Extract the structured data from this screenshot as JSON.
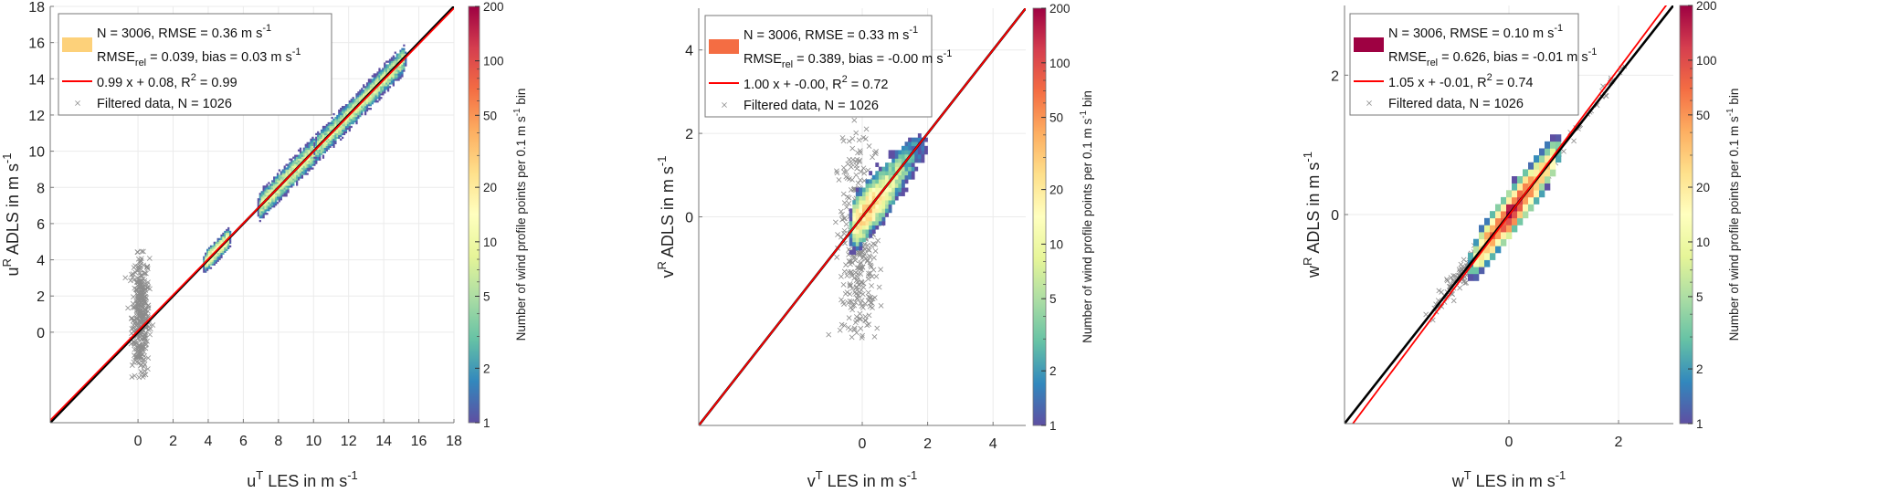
{
  "colormap": {
    "name": "spectral (reversed), log scale",
    "stops": [
      "#5e4fa2",
      "#3288bd",
      "#66c2a5",
      "#abdda4",
      "#e6f598",
      "#ffffbf",
      "#fee08b",
      "#fdae61",
      "#f46d43",
      "#d53e4f",
      "#9e0142"
    ],
    "limits": [
      1,
      200
    ],
    "ticks": [
      1,
      2,
      5,
      10,
      20,
      50,
      100,
      200
    ],
    "label": "Number of wind profile points per 0.1 m s",
    "label_sup": "-1",
    "label_end": " bin"
  },
  "chart_data": [
    {
      "type": "heatmap",
      "component": "u",
      "xlabel": {
        "base": "u",
        "sup": "T",
        "rest": " LES in m s",
        "unit_sup": "-1"
      },
      "ylabel": {
        "base": "u",
        "sup": "R",
        "rest": " ADLS in m s",
        "unit_sup": "-1"
      },
      "xlim": [
        -5,
        18
      ],
      "ylim": [
        -5,
        18
      ],
      "xticks": [
        0,
        2,
        4,
        6,
        8,
        10,
        12,
        14,
        16,
        18
      ],
      "yticks": [
        0,
        2,
        4,
        6,
        8,
        10,
        12,
        14,
        16,
        18
      ],
      "grid": true,
      "bin_size": 0.1,
      "fit": {
        "slope": 0.99,
        "intercept": 0.08,
        "color": "#ff0000"
      },
      "identity_line_color": "#000000",
      "legend": {
        "placement": "top-left",
        "patch_color": "#fdd17a",
        "line1": "N = 3006, RMSE = 0.36 m s",
        "line1_sup": "-1",
        "line2a": "RMSE",
        "line2_sub": "rel",
        "line2b": " = 0.039, bias = 0.03 m s",
        "line2_sup": "-1",
        "line3a": "0.99 x + 0.08, R",
        "line3_sup": "2",
        "line3b": " = 0.99",
        "line4": "Filtered data, N = 1026"
      },
      "density_clusters": [
        {
          "x_range": [
            3.9,
            5.0
          ],
          "spread": 0.25,
          "peak_count": 14
        },
        {
          "x_range": [
            7.0,
            10.2
          ],
          "spread": 0.35,
          "peak_count": 9
        },
        {
          "x_range": [
            10.2,
            15.0
          ],
          "spread": 0.35,
          "peak_count": 8
        }
      ],
      "filtered_points": {
        "x_center": 0.15,
        "x_spread": 0.25,
        "y_range": [
          -2.7,
          4.6
        ],
        "y_center": 0.9,
        "count": 1026
      }
    },
    {
      "type": "heatmap",
      "component": "v",
      "xlabel": {
        "base": "v",
        "sup": "T",
        "rest": "  LES in m s",
        "unit_sup": "-1"
      },
      "ylabel": {
        "base": "v",
        "sup": "R",
        "rest": " ADLS in m s",
        "unit_sup": "-1"
      },
      "xlim": [
        -5,
        5
      ],
      "ylim": [
        -5,
        5
      ],
      "xticks": [
        0,
        2,
        4
      ],
      "yticks": [
        0,
        2,
        4
      ],
      "grid": true,
      "bin_size": 0.1,
      "fit": {
        "slope": 1.0,
        "intercept": -0.0,
        "color": "#ff0000"
      },
      "identity_line_color": "#000000",
      "legend": {
        "placement": "top-left",
        "patch_color": "#f46d43",
        "line1": "N = 3006, RMSE = 0.33 m s",
        "line1_sup": "-1",
        "line2a": "RMSE",
        "line2_sub": "rel",
        "line2b": " = 0.389, bias = -0.00 m s",
        "line2_sup": "-1",
        "line3a": "1.00 x + -0.00, R",
        "line3_sup": "2",
        "line3b": " = 0.72",
        "line4": "Filtered data, N = 1026"
      },
      "density_clusters": [
        {
          "x_range": [
            -0.2,
            1.8
          ],
          "spread": 0.3,
          "peak_count": 40,
          "hot_center": [
            0.1,
            0.1
          ]
        }
      ],
      "filtered_points": {
        "x_center": -0.1,
        "x_spread": 0.3,
        "y_range": [
          -2.9,
          2.5
        ],
        "y_center": -0.5,
        "count": 1026
      }
    },
    {
      "type": "heatmap",
      "component": "w",
      "xlabel": {
        "base": "w",
        "sup": "T",
        "rest": " LES in m s",
        "unit_sup": "-1"
      },
      "ylabel": {
        "base": "w",
        "sup": "R",
        "rest": " ADLS in m s",
        "unit_sup": "-1"
      },
      "xlim": [
        -3,
        3
      ],
      "ylim": [
        -3,
        3
      ],
      "xticks": [
        0,
        2
      ],
      "yticks": [
        0,
        2
      ],
      "grid": true,
      "bin_size": 0.1,
      "fit": {
        "slope": 1.05,
        "intercept": -0.01,
        "color": "#ff0000"
      },
      "identity_line_color": "#000000",
      "legend": {
        "placement": "top-left",
        "patch_color": "#9e0142",
        "line1": "N = 3006, RMSE = 0.10 m s",
        "line1_sup": "-1",
        "line2a": "RMSE",
        "line2_sub": "rel",
        "line2b": " = 0.626, bias = -0.01 m s",
        "line2_sup": "-1",
        "line3a": "1.05 x + -0.01, R",
        "line3_sup": "2",
        "line3b": " = 0.74",
        "line4": "Filtered data, N = 1026"
      },
      "density_clusters": [
        {
          "x_range": [
            -0.55,
            0.7
          ],
          "spread": 0.12,
          "peak_count": 200,
          "hot_center": [
            0.0,
            0.0
          ]
        }
      ],
      "filtered_points": {
        "x_center": -0.3,
        "x_spread": 0.08,
        "y_range": [
          -1.3,
          1.3
        ],
        "y_center": -0.3,
        "count": 1026,
        "along_diagonal": true
      }
    }
  ]
}
